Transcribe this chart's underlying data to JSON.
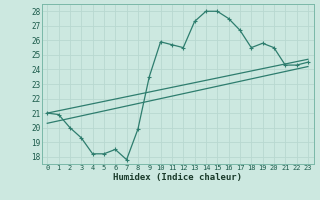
{
  "xlabel": "Humidex (Indice chaleur)",
  "xlim": [
    -0.5,
    23.5
  ],
  "ylim": [
    17.5,
    28.5
  ],
  "xticks": [
    0,
    1,
    2,
    3,
    4,
    5,
    6,
    7,
    8,
    9,
    10,
    11,
    12,
    13,
    14,
    15,
    16,
    17,
    18,
    19,
    20,
    21,
    22,
    23
  ],
  "yticks": [
    18,
    19,
    20,
    21,
    22,
    23,
    24,
    25,
    26,
    27,
    28
  ],
  "bg_color": "#cce8e0",
  "line_color": "#2e7d6e",
  "grid_color": "#b8d8d0",
  "line1_x": [
    0,
    1,
    2,
    3,
    4,
    5,
    6,
    7,
    8,
    9,
    10,
    11,
    12,
    13,
    14,
    15,
    16,
    17,
    18,
    19,
    20,
    21,
    22,
    23
  ],
  "line1_y": [
    21.0,
    20.9,
    20.0,
    19.3,
    18.2,
    18.2,
    18.5,
    17.8,
    19.9,
    23.5,
    25.9,
    25.7,
    25.5,
    27.3,
    28.0,
    28.0,
    27.5,
    26.7,
    25.5,
    25.8,
    25.5,
    24.3,
    24.3,
    24.5
  ],
  "line2_x": [
    0,
    23
  ],
  "line2_y": [
    21.0,
    24.7
  ],
  "line3_x": [
    0,
    23
  ],
  "line3_y": [
    20.3,
    24.2
  ]
}
